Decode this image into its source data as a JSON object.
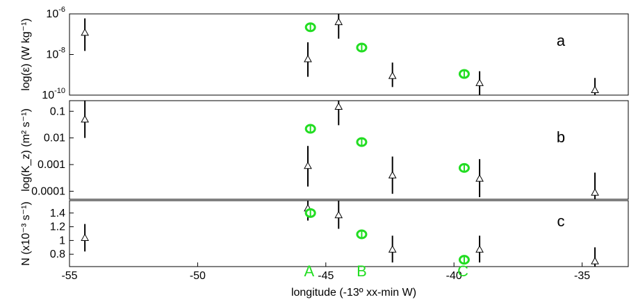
{
  "chart_data": {
    "type": "scatter",
    "xlabel": "longitude (-13º xx-min W)",
    "xlim": [
      -55,
      -33.2
    ],
    "xticks": [
      -55,
      -50,
      -45,
      -40,
      -35
    ],
    "station_labels": [
      {
        "label": "A",
        "x": -45.65
      },
      {
        "label": "B",
        "x": -43.6
      },
      {
        "label": "C",
        "x": -39.65
      }
    ],
    "colors": {
      "triangles": "#000000",
      "circles": "#22dd22",
      "stations": "#22dd22"
    },
    "panels": [
      {
        "id": "a",
        "letter": "a",
        "ylabel": "log(ε) (W kg⁻¹)",
        "yscale": "log",
        "ylim": [
          1e-10,
          1e-06
        ],
        "yticks": [
          {
            "value": 1e-06,
            "base": "10",
            "exp": "-6"
          },
          {
            "value": 1e-08,
            "base": "10",
            "exp": "-8"
          },
          {
            "value": 1e-10,
            "base": "10",
            "exp": "-10"
          }
        ],
        "triangles": [
          {
            "x": -54.4,
            "y": 1.2e-07,
            "lo": 1.5e-08,
            "hi": 6e-07
          },
          {
            "x": -45.7,
            "y": 6e-09,
            "lo": 8e-10,
            "hi": 4e-08
          },
          {
            "x": -44.5,
            "y": 4e-07,
            "lo": 6e-08,
            "hi": 1e-06
          },
          {
            "x": -42.4,
            "y": 9e-10,
            "lo": 2.5e-10,
            "hi": 4e-09
          },
          {
            "x": -39.0,
            "y": 4e-10,
            "lo": 1e-10,
            "hi": 1.5e-09
          },
          {
            "x": -34.5,
            "y": 1.8e-10,
            "lo": 1e-10,
            "hi": 7e-10
          }
        ],
        "circles": [
          {
            "x": -45.6,
            "y": 2.2e-07
          },
          {
            "x": -43.6,
            "y": 2.2e-08
          },
          {
            "x": -39.6,
            "y": 1.1e-09
          }
        ]
      },
      {
        "id": "b",
        "letter": "b",
        "ylabel": "log(K_z) (m² s⁻¹)",
        "yscale": "log",
        "ylim": [
          5e-05,
          0.25
        ],
        "yticks": [
          {
            "value": 0.1,
            "label": "0.1"
          },
          {
            "value": 0.01,
            "label": "0.01"
          },
          {
            "value": 0.001,
            "label": "0.001"
          },
          {
            "value": 0.0001,
            "label": "0.0001"
          }
        ],
        "triangles": [
          {
            "x": -54.4,
            "y": 0.05,
            "lo": 0.01,
            "hi": 0.25
          },
          {
            "x": -45.7,
            "y": 0.0009,
            "lo": 0.00015,
            "hi": 0.005
          },
          {
            "x": -44.5,
            "y": 0.15,
            "lo": 0.03,
            "hi": 0.25
          },
          {
            "x": -42.4,
            "y": 0.0004,
            "lo": 8e-05,
            "hi": 0.002
          },
          {
            "x": -39.0,
            "y": 0.0003,
            "lo": 6e-05,
            "hi": 0.0016
          },
          {
            "x": -34.5,
            "y": 9e-05,
            "lo": 5e-05,
            "hi": 0.0005
          }
        ],
        "circles": [
          {
            "x": -45.6,
            "y": 0.022
          },
          {
            "x": -43.6,
            "y": 0.007
          },
          {
            "x": -39.6,
            "y": 0.00075
          }
        ]
      },
      {
        "id": "c",
        "letter": "c",
        "ylabel": "N (x10⁻³ s⁻¹)",
        "yscale": "linear",
        "ylim": [
          0.62,
          1.58
        ],
        "yticks": [
          {
            "value": 1.4,
            "label": "1.4"
          },
          {
            "value": 1.2,
            "label": "1.2"
          },
          {
            "value": 1.0,
            "label": "1"
          },
          {
            "value": 0.8,
            "label": "0.8"
          }
        ],
        "triangles": [
          {
            "x": -54.4,
            "y": 1.04,
            "lo": 0.84,
            "hi": 1.24
          },
          {
            "x": -45.7,
            "y": 1.47,
            "lo": 1.29,
            "hi": 1.58
          },
          {
            "x": -44.5,
            "y": 1.37,
            "lo": 1.17,
            "hi": 1.58
          },
          {
            "x": -42.4,
            "y": 0.87,
            "lo": 0.68,
            "hi": 1.07
          },
          {
            "x": -39.0,
            "y": 0.87,
            "lo": 0.68,
            "hi": 1.07
          },
          {
            "x": -34.5,
            "y": 0.7,
            "lo": 0.62,
            "hi": 0.9
          }
        ],
        "circles": [
          {
            "x": -45.6,
            "y": 1.4
          },
          {
            "x": -43.6,
            "y": 1.09
          },
          {
            "x": -39.6,
            "y": 0.72
          }
        ]
      }
    ]
  }
}
